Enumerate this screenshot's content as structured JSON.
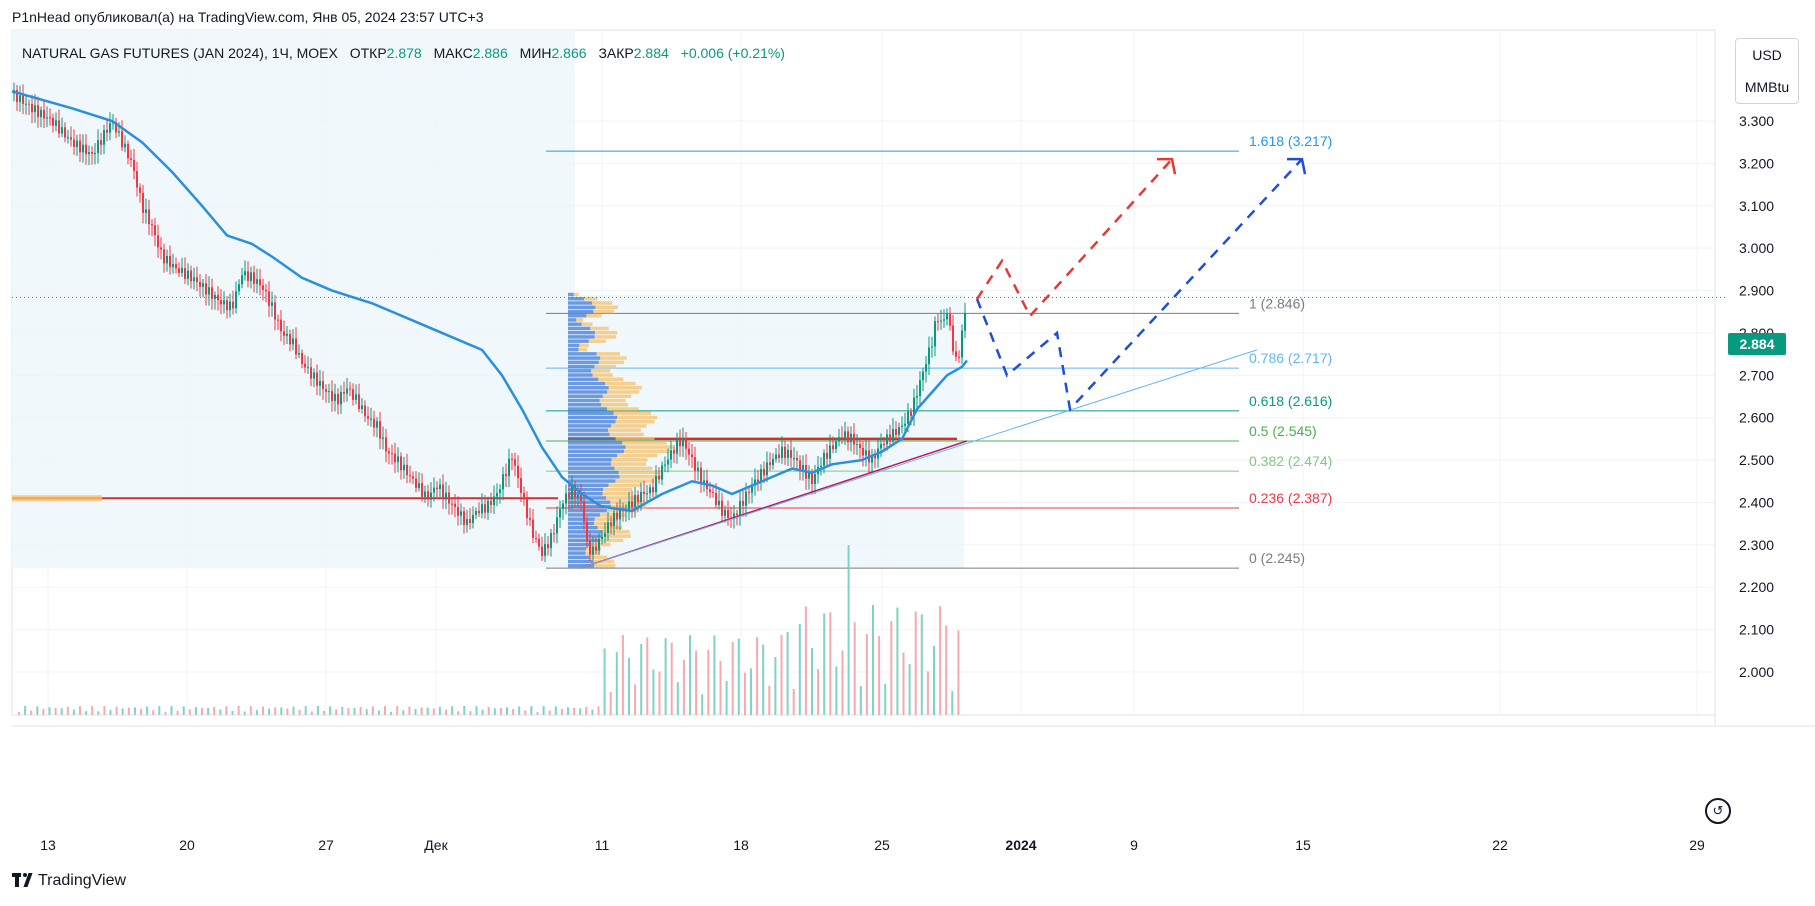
{
  "header": {
    "published": "P1nHead опубликовал(а) на TradingView.com, Янв 05, 2024 23:57 UTC+3"
  },
  "symbol": {
    "name": "NATURAL GAS FUTURES (JAN 2024), 1Ч, MOEX",
    "open_label": "ОТКР",
    "open": "2.878",
    "high_label": "МАКС",
    "high": "2.886",
    "low_label": "МИН",
    "low": "2.866",
    "close_label": "ЗАКР",
    "close": "2.884",
    "change": "+0.006 (+0.21%)"
  },
  "price_axis": {
    "currency": "USD",
    "unit": "MMBtu",
    "last_price": "2.884"
  },
  "footer": {
    "brand": "TradingView"
  },
  "colors": {
    "ma": "#2a8fde",
    "candle_up": "#089981",
    "candle_down": "#f23645",
    "fib_blue": "#2196f3",
    "proj_red": "#e53935",
    "proj_blue": "#1e4fd6",
    "pivot_line": "#d32f2f",
    "zone": "#e3f2fd"
  },
  "chart_data": {
    "type": "candlestick",
    "x_ticks": [
      "13",
      "20",
      "27",
      "Дек",
      "11",
      "18",
      "25",
      "2024",
      "9",
      "15",
      "22",
      "29"
    ],
    "y_ticks": [
      "3.300",
      "3.200",
      "3.100",
      "3.000",
      "2.900",
      "2.800",
      "2.700",
      "2.600",
      "2.500",
      "2.400",
      "2.300",
      "2.200",
      "2.100",
      "2.000"
    ],
    "ylim": [
      1.95,
      3.35
    ],
    "last_price": 2.884,
    "fib_levels": [
      {
        "ratio": "1",
        "price": 2.846,
        "label": "1 (2.846)",
        "color": "#787b86"
      },
      {
        "ratio": "0.786",
        "price": 2.717,
        "label": "0.786 (2.717)",
        "color": "#64b5f6"
      },
      {
        "ratio": "0.618",
        "price": 2.616,
        "label": "0.618 (2.616)",
        "color": "#089981"
      },
      {
        "ratio": "0.5",
        "price": 2.545,
        "label": "0.5 (2.545)",
        "color": "#4caf50"
      },
      {
        "ratio": "0.382",
        "price": 2.474,
        "label": "0.382 (2.474)",
        "color": "#81c784"
      },
      {
        "ratio": "0.236",
        "price": 2.387,
        "label": "0.236 (2.387)",
        "color": "#f23645"
      },
      {
        "ratio": "0",
        "price": 2.245,
        "label": "0 (2.245)",
        "color": "#787b86"
      }
    ],
    "fib_extension": {
      "ratio": "1.618",
      "price": 3.217,
      "label": "1.618 (3.217)",
      "color": "#2196f3"
    },
    "horizontal_levels": [
      2.41,
      2.55
    ],
    "series": [
      {
        "name": "price",
        "points": [
          [
            0,
            3.365
          ],
          [
            20,
            3.33
          ],
          [
            40,
            3.3
          ],
          [
            60,
            3.25
          ],
          [
            80,
            3.22
          ],
          [
            100,
            3.3
          ],
          [
            120,
            3.2
          ],
          [
            130,
            3.1
          ],
          [
            140,
            3.05
          ],
          [
            150,
            2.98
          ],
          [
            165,
            2.95
          ],
          [
            180,
            2.93
          ],
          [
            200,
            2.89
          ],
          [
            210,
            2.87
          ],
          [
            220,
            2.86
          ],
          [
            230,
            2.94
          ],
          [
            240,
            2.93
          ],
          [
            250,
            2.91
          ],
          [
            260,
            2.86
          ],
          [
            270,
            2.8
          ],
          [
            280,
            2.78
          ],
          [
            290,
            2.73
          ],
          [
            300,
            2.7
          ],
          [
            315,
            2.66
          ],
          [
            325,
            2.64
          ],
          [
            335,
            2.67
          ],
          [
            345,
            2.64
          ],
          [
            355,
            2.6
          ],
          [
            365,
            2.58
          ],
          [
            375,
            2.52
          ],
          [
            385,
            2.5
          ],
          [
            395,
            2.47
          ],
          [
            405,
            2.44
          ],
          [
            415,
            2.41
          ],
          [
            425,
            2.44
          ],
          [
            435,
            2.41
          ],
          [
            445,
            2.38
          ],
          [
            455,
            2.35
          ],
          [
            465,
            2.38
          ],
          [
            475,
            2.39
          ],
          [
            485,
            2.42
          ],
          [
            495,
            2.48
          ],
          [
            500,
            2.51
          ],
          [
            510,
            2.42
          ],
          [
            520,
            2.33
          ],
          [
            530,
            2.28
          ],
          [
            540,
            2.32
          ],
          [
            550,
            2.4
          ],
          [
            560,
            2.43
          ],
          [
            570,
            2.4
          ],
          [
            575,
            2.3
          ],
          [
            580,
            2.28
          ],
          [
            590,
            2.32
          ],
          [
            600,
            2.36
          ],
          [
            610,
            2.38
          ],
          [
            620,
            2.4
          ],
          [
            630,
            2.42
          ],
          [
            640,
            2.43
          ],
          [
            650,
            2.48
          ],
          [
            660,
            2.52
          ],
          [
            670,
            2.55
          ],
          [
            680,
            2.5
          ],
          [
            690,
            2.45
          ],
          [
            700,
            2.42
          ],
          [
            710,
            2.38
          ],
          [
            720,
            2.36
          ],
          [
            730,
            2.4
          ],
          [
            740,
            2.44
          ],
          [
            750,
            2.47
          ],
          [
            760,
            2.5
          ],
          [
            770,
            2.52
          ],
          [
            780,
            2.51
          ],
          [
            790,
            2.48
          ],
          [
            800,
            2.45
          ],
          [
            810,
            2.5
          ],
          [
            820,
            2.53
          ],
          [
            830,
            2.56
          ],
          [
            840,
            2.55
          ],
          [
            850,
            2.52
          ],
          [
            860,
            2.5
          ],
          [
            870,
            2.54
          ],
          [
            880,
            2.56
          ],
          [
            890,
            2.58
          ],
          [
            900,
            2.62
          ],
          [
            910,
            2.7
          ],
          [
            920,
            2.78
          ],
          [
            925,
            2.84
          ],
          [
            930,
            2.82
          ],
          [
            935,
            2.85
          ],
          [
            940,
            2.78
          ],
          [
            945,
            2.72
          ],
          [
            950,
            2.8
          ],
          [
            955,
            2.88
          ]
        ]
      },
      {
        "name": "ma",
        "points": [
          [
            0,
            3.37
          ],
          [
            60,
            3.33
          ],
          [
            100,
            3.3
          ],
          [
            130,
            3.25
          ],
          [
            160,
            3.18
          ],
          [
            190,
            3.1
          ],
          [
            215,
            3.03
          ],
          [
            240,
            3.01
          ],
          [
            260,
            2.98
          ],
          [
            290,
            2.93
          ],
          [
            320,
            2.9
          ],
          [
            360,
            2.87
          ],
          [
            400,
            2.83
          ],
          [
            430,
            2.8
          ],
          [
            470,
            2.76
          ],
          [
            490,
            2.7
          ],
          [
            510,
            2.62
          ],
          [
            530,
            2.53
          ],
          [
            550,
            2.46
          ],
          [
            570,
            2.42
          ],
          [
            590,
            2.39
          ],
          [
            620,
            2.38
          ],
          [
            650,
            2.42
          ],
          [
            680,
            2.45
          ],
          [
            700,
            2.44
          ],
          [
            720,
            2.42
          ],
          [
            740,
            2.44
          ],
          [
            760,
            2.46
          ],
          [
            780,
            2.48
          ],
          [
            800,
            2.47
          ],
          [
            820,
            2.49
          ],
          [
            850,
            2.5
          ],
          [
            870,
            2.52
          ],
          [
            890,
            2.55
          ],
          [
            905,
            2.62
          ],
          [
            920,
            2.66
          ],
          [
            935,
            2.7
          ],
          [
            950,
            2.72
          ],
          [
            955,
            2.735
          ]
        ]
      }
    ],
    "projection_red": [
      [
        965,
        2.88
      ],
      [
        990,
        2.97
      ],
      [
        1018,
        2.84
      ],
      [
        1160,
        3.21
      ]
    ],
    "projection_blue": [
      [
        965,
        2.88
      ],
      [
        995,
        2.7
      ],
      [
        1045,
        2.8
      ],
      [
        1058,
        2.62
      ],
      [
        1290,
        3.21
      ]
    ],
    "support_line": [
      [
        568,
        2.245
      ],
      [
        955,
        2.545
      ]
    ],
    "trend_line": [
      [
        568,
        2.245
      ],
      [
        1245,
        2.76
      ]
    ]
  }
}
